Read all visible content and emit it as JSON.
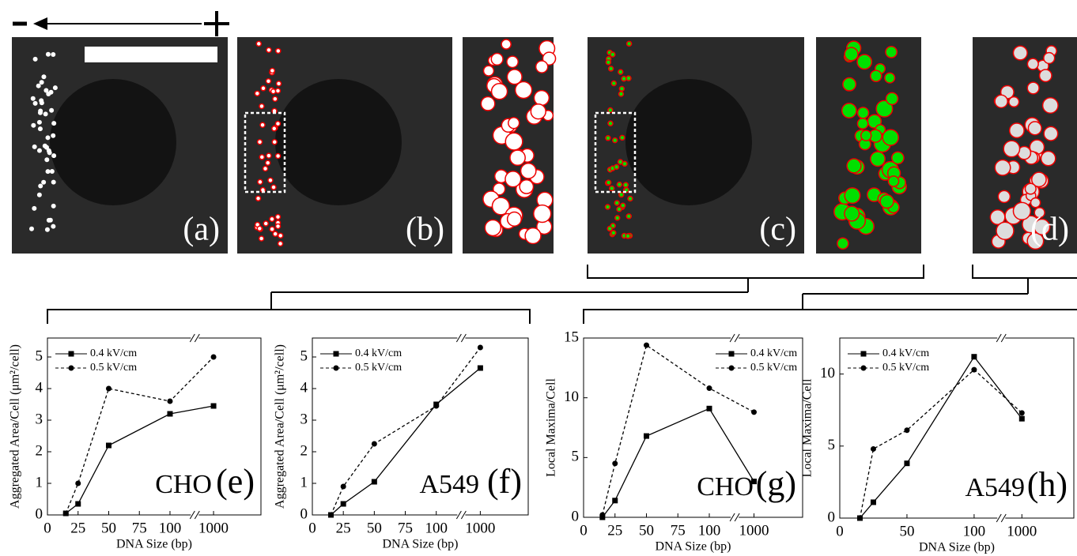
{
  "panels": [
    {
      "label": "(a)"
    },
    {
      "label": "(b)"
    },
    {
      "label": "(c)"
    },
    {
      "label": "(d)"
    }
  ],
  "chart_data": [
    {
      "type": "line",
      "label": "(e)",
      "annotation": "CHO",
      "x_label": "DNA Size (bp)",
      "y_label": "Aggregated Area/Cell (μm²/cell)",
      "x": [
        15,
        25,
        50,
        100,
        1000
      ],
      "xlim": [
        0,
        1000
      ],
      "xticks": [
        0,
        25,
        50,
        75,
        100,
        1000
      ],
      "ylim": [
        0,
        5.6
      ],
      "yticks": [
        0,
        1,
        2,
        3,
        4,
        5
      ],
      "axis_break": true,
      "legend": "upper-left",
      "series": [
        {
          "name": "0.4 kV/cm",
          "color": "#000000",
          "dashed": false,
          "marker": "square",
          "values": [
            0.05,
            0.35,
            2.2,
            3.2,
            3.45
          ]
        },
        {
          "name": "0.5 kV/cm",
          "color": "#000000",
          "dashed": true,
          "marker": "circle",
          "values": [
            0.05,
            1.0,
            4.0,
            3.6,
            5.0
          ]
        }
      ]
    },
    {
      "type": "line",
      "label": "(f)",
      "annotation": "A549",
      "x_label": "DNA Size (bp)",
      "y_label": "Aggregated Area/Cell (μm²/cell)",
      "x": [
        15,
        25,
        50,
        100,
        1000
      ],
      "xlim": [
        0,
        1000
      ],
      "xticks": [
        0,
        25,
        50,
        75,
        100,
        1000
      ],
      "ylim": [
        0,
        5.6
      ],
      "yticks": [
        0,
        1,
        2,
        3,
        4,
        5
      ],
      "axis_break": true,
      "legend": "upper-left",
      "series": [
        {
          "name": "0.4 kV/cm",
          "color": "#000000",
          "dashed": false,
          "marker": "square",
          "values": [
            0,
            0.35,
            1.05,
            3.5,
            4.65
          ]
        },
        {
          "name": "0.5 kV/cm",
          "color": "#000000",
          "dashed": true,
          "marker": "circle",
          "values": [
            0,
            0.9,
            2.25,
            3.45,
            5.3
          ]
        }
      ]
    },
    {
      "type": "line",
      "label": "(g)",
      "annotation": "CHO",
      "x_label": "DNA Size (bp)",
      "y_label": "Local Maxima/Cell",
      "x": [
        15,
        25,
        50,
        100,
        1000
      ],
      "xlim": [
        0,
        1000
      ],
      "xticks": [
        0,
        25,
        50,
        75,
        100,
        1000
      ],
      "ylim": [
        0,
        15
      ],
      "yticks": [
        0,
        5,
        10,
        15
      ],
      "axis_break": true,
      "legend": "upper-right",
      "series": [
        {
          "name": "0.4 kV/cm",
          "color": "#000000",
          "dashed": false,
          "marker": "square",
          "values": [
            0,
            1.4,
            6.8,
            9.1,
            3.0
          ]
        },
        {
          "name": "0.5 kV/cm",
          "color": "#000000",
          "dashed": true,
          "marker": "circle",
          "values": [
            0.2,
            4.5,
            14.4,
            10.8,
            8.8
          ]
        }
      ]
    },
    {
      "type": "line",
      "label": "(h)",
      "annotation": "A549",
      "x_label": "DNA Size (bp)",
      "y_label": "Local Maxima/Cell",
      "x": [
        15,
        25,
        50,
        100,
        1000
      ],
      "xlim": [
        0,
        1000
      ],
      "xticks": [
        0,
        50,
        100,
        1000
      ],
      "ylim": [
        0,
        12.5
      ],
      "yticks": [
        0,
        5,
        10
      ],
      "axis_break": true,
      "legend": "upper-left",
      "series": [
        {
          "name": "0.4 kV/cm",
          "color": "#000000",
          "dashed": false,
          "marker": "square",
          "values": [
            0,
            1.1,
            3.8,
            11.2,
            6.9
          ]
        },
        {
          "name": "0.5 kV/cm",
          "color": "#000000",
          "dashed": true,
          "marker": "circle",
          "values": [
            0,
            4.8,
            6.1,
            10.3,
            7.3
          ]
        }
      ]
    }
  ]
}
